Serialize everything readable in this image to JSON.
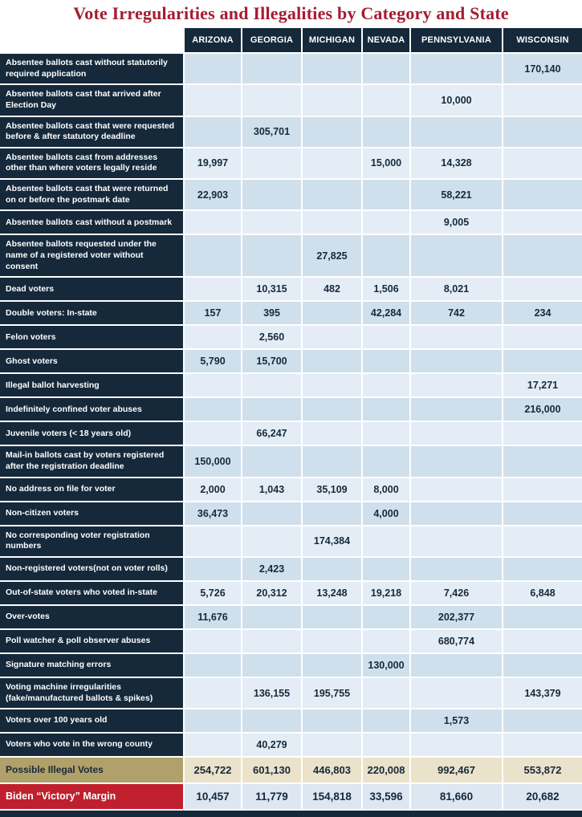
{
  "title": "Vote Irregularities and Illegalities by Category and State",
  "colors": {
    "title_red": "#a51c30",
    "header_navy": "#15293b",
    "row_blue_dark": "#d0dfec",
    "row_blue_light": "#e4edf5",
    "footer_khaki": "#b0a069",
    "footer_cream": "#eae2ca",
    "footer_red": "#c01f2d"
  },
  "chart_data": {
    "type": "table",
    "title": "Vote Irregularities and Illegalities by Category and State",
    "columns": [
      "ARIZONA",
      "GEORGIA",
      "MICHIGAN",
      "NEVADA",
      "PENNSYLVANIA",
      "WISCONSIN"
    ],
    "rows": [
      {
        "label": "Absentee ballots cast without statutorily required application",
        "values": [
          "",
          "",
          "",
          "",
          "",
          "170,140"
        ]
      },
      {
        "label": "Absentee ballots cast that arrived after Election Day",
        "values": [
          "",
          "",
          "",
          "",
          "10,000",
          ""
        ]
      },
      {
        "label": "Absentee ballots cast that were requested before & after statutory deadline",
        "values": [
          "",
          "305,701",
          "",
          "",
          "",
          ""
        ]
      },
      {
        "label": "Absentee ballots cast from addresses other than where voters legally reside",
        "values": [
          "19,997",
          "",
          "",
          "15,000",
          "14,328",
          ""
        ]
      },
      {
        "label": "Absentee ballots cast that were returned on or before the postmark date",
        "values": [
          "22,903",
          "",
          "",
          "",
          "58,221",
          ""
        ]
      },
      {
        "label": "Absentee ballots cast without a postmark",
        "values": [
          "",
          "",
          "",
          "",
          "9,005",
          ""
        ]
      },
      {
        "label": "Absentee ballots requested under the name of a registered voter without consent",
        "values": [
          "",
          "",
          "27,825",
          "",
          "",
          ""
        ]
      },
      {
        "label": "Dead voters",
        "values": [
          "",
          "10,315",
          "482",
          "1,506",
          "8,021",
          ""
        ]
      },
      {
        "label": "Double voters: In-state",
        "values": [
          "157",
          "395",
          "",
          "42,284",
          "742",
          "234"
        ]
      },
      {
        "label": "Felon voters",
        "values": [
          "",
          "2,560",
          "",
          "",
          "",
          ""
        ]
      },
      {
        "label": "Ghost voters",
        "values": [
          "5,790",
          "15,700",
          "",
          "",
          "",
          ""
        ]
      },
      {
        "label": "Illegal ballot harvesting",
        "values": [
          "",
          "",
          "",
          "",
          "",
          "17,271"
        ]
      },
      {
        "label": "Indefinitely confined voter abuses",
        "values": [
          "",
          "",
          "",
          "",
          "",
          "216,000"
        ]
      },
      {
        "label": "Juvenile voters (< 18 years old)",
        "values": [
          "",
          "66,247",
          "",
          "",
          "",
          ""
        ]
      },
      {
        "label": "Mail-in ballots cast by voters registered after the registration deadline",
        "values": [
          "150,000",
          "",
          "",
          "",
          "",
          ""
        ]
      },
      {
        "label": "No address on file for voter",
        "values": [
          "2,000",
          "1,043",
          "35,109",
          "8,000",
          "",
          ""
        ]
      },
      {
        "label": "Non-citizen voters",
        "values": [
          "36,473",
          "",
          "",
          "4,000",
          "",
          ""
        ]
      },
      {
        "label": "No corresponding voter registration numbers",
        "values": [
          "",
          "",
          "174,384",
          "",
          "",
          ""
        ]
      },
      {
        "label": "Non-registered voters(not on voter rolls)",
        "values": [
          "",
          "2,423",
          "",
          "",
          "",
          ""
        ]
      },
      {
        "label": "Out-of-state voters who voted in-state",
        "values": [
          "5,726",
          "20,312",
          "13,248",
          "19,218",
          "7,426",
          "6,848"
        ]
      },
      {
        "label": "Over-votes",
        "values": [
          "11,676",
          "",
          "",
          "",
          "202,377",
          ""
        ]
      },
      {
        "label": "Poll watcher & poll observer abuses",
        "values": [
          "",
          "",
          "",
          "",
          "680,774",
          ""
        ]
      },
      {
        "label": "Signature matching errors",
        "values": [
          "",
          "",
          "",
          "130,000",
          "",
          ""
        ]
      },
      {
        "label": "Voting machine irregularities (fake/manufactured ballots & spikes)",
        "values": [
          "",
          "136,155",
          "195,755",
          "",
          "",
          "143,379"
        ]
      },
      {
        "label": "Voters over 100 years old",
        "values": [
          "",
          "",
          "",
          "",
          "1,573",
          ""
        ]
      },
      {
        "label": "Voters who vote in the wrong county",
        "values": [
          "",
          "40,279",
          "",
          "",
          "",
          ""
        ]
      }
    ],
    "footer": [
      {
        "label": "Possible Illegal Votes",
        "values": [
          "254,722",
          "601,130",
          "446,803",
          "220,008",
          "992,467",
          "553,872"
        ]
      },
      {
        "label": "Biden “Victory” Margin",
        "values": [
          "10,457",
          "11,779",
          "154,818",
          "33,596",
          "81,660",
          "20,682"
        ]
      }
    ]
  }
}
